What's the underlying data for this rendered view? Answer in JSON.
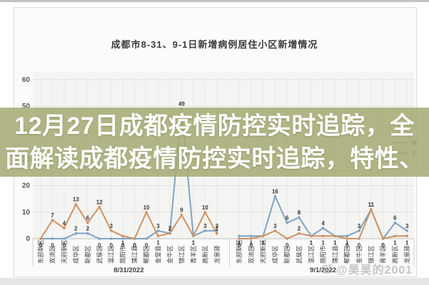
{
  "page": {
    "title": "成都市8-31、9-1日新增病例居住小区新增情况",
    "watermark": "@昊昊的2001"
  },
  "overlay": {
    "line1": "12月27日成都疫情防控实时追踪，全",
    "line2": "面解读成都疫情防控实时追踪，特性、",
    "bg_color": "#a5aa73",
    "text_color": "#ffffff"
  },
  "chart_data": {
    "type": "line",
    "title": "成都市8-31、9-1日新增病例居住小区新增情况",
    "ylim": [
      0,
      60
    ],
    "yticks": [
      0,
      10,
      20,
      30,
      40,
      50,
      60
    ],
    "grid": true,
    "legend": {
      "position": "right",
      "entries": [
        "N",
        "Y"
      ]
    },
    "colors": {
      "N": "#7fa3c2",
      "Y": "#ce9263",
      "label": "#3a3a3a",
      "axis": "#bfbfbf",
      "tick_text": "#555555"
    },
    "groups": [
      {
        "label": "8/31/2022",
        "categories": [
          "东部新区",
          "双流区",
          "天府新区",
          "成华区",
          "新都区",
          "武侯区",
          "温江区",
          "简阳市",
          "蒲江县",
          "郫都区",
          "金堂县",
          "金牛区",
          "锦江区",
          "青羊区",
          "高新区",
          "龙泉驿"
        ],
        "series": [
          {
            "name": "N",
            "values": [
              0,
              0,
              0,
              2,
              2,
              0,
              0,
              0,
              0,
              0,
              3,
              2,
              49,
              1,
              3,
              3
            ]
          },
          {
            "name": "Y",
            "values": [
              0,
              7,
              4,
              13,
              6,
              12,
              3,
              1,
              0,
              10,
              1,
              2,
              9,
              1,
              10,
              2
            ]
          }
        ]
      },
      {
        "label": "9/1/2022",
        "categories": [
          "东部新区",
          "双流区",
          "天府新区",
          "成华区",
          "新都区",
          "武侯区",
          "温江区",
          "简阳市",
          "蒲江县",
          "郫都区",
          "金牛区",
          "锦江区",
          "青羊区",
          "高新区",
          "龙泉驿"
        ],
        "series": [
          {
            "name": "N",
            "values": [
              1,
              1,
              1,
              16,
              6,
              8,
              1,
              4,
              1,
              1,
              3,
              11,
              0,
              6,
              3
            ]
          },
          {
            "name": "Y",
            "values": [
              0,
              0,
              1,
              3,
              0,
              2,
              1,
              1,
              1,
              0,
              0,
              11,
              0,
              1,
              1
            ]
          }
        ]
      }
    ]
  }
}
